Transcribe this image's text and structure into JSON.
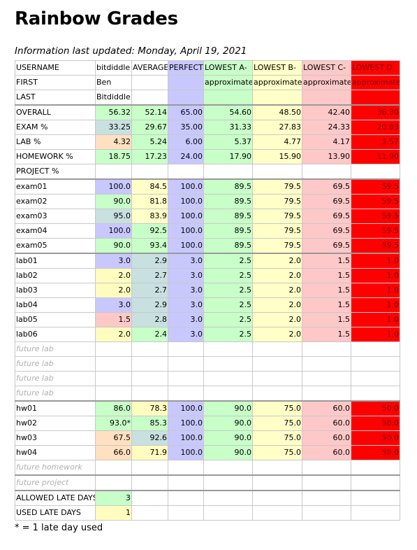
{
  "title": "Rainbow Grades",
  "updated": "Information last updated: Monday, April 19, 2021",
  "footnote": "* = 1 late day used",
  "colors": {
    "perfect": "#c8c8ff",
    "lowest_a": "#c8ffc8",
    "lowest_b": "#ffffc8",
    "lowest_c": "#ffc8c8",
    "lowest_d": "#ff0000"
  },
  "header": {
    "c0": "USERNAME",
    "c1": "bitdiddle",
    "c2": "AVERAGE",
    "c3": "PERFECT",
    "c4": "LOWEST A-",
    "c5": "LOWEST B-",
    "c6": "LOWEST C-",
    "c7": "LOWEST D"
  },
  "first": {
    "label": "FIRST",
    "value": "Ben",
    "approx": "approximate"
  },
  "last": {
    "label": "LAST",
    "value": "Bitdiddle"
  },
  "summary": {
    "overall": {
      "label": "OVERALL",
      "v": [
        "56.32",
        "52.14",
        "65.00",
        "54.60",
        "48.50",
        "42.40",
        "36.30"
      ]
    },
    "exam": {
      "label": "EXAM %",
      "v": [
        "33.25",
        "29.67",
        "35.00",
        "31.33",
        "27.83",
        "24.33",
        "20.83"
      ]
    },
    "lab": {
      "label": "LAB %",
      "v": [
        "4.32",
        "5.24",
        "6.00",
        "5.37",
        "4.77",
        "4.17",
        "3.57"
      ]
    },
    "homework": {
      "label": "HOMEWORK %",
      "v": [
        "18.75",
        "17.23",
        "24.00",
        "17.90",
        "15.90",
        "13.90",
        "11.90"
      ]
    },
    "project": {
      "label": "PROJECT %"
    }
  },
  "exams": [
    {
      "label": "exam01",
      "v": [
        "100.0",
        "84.5",
        "100.0",
        "89.5",
        "79.5",
        "69.5",
        "59.5"
      ]
    },
    {
      "label": "exam02",
      "v": [
        "90.0",
        "81.8",
        "100.0",
        "89.5",
        "79.5",
        "69.5",
        "59.5"
      ]
    },
    {
      "label": "exam03",
      "v": [
        "95.0",
        "83.9",
        "100.0",
        "89.5",
        "79.5",
        "69.5",
        "59.5"
      ]
    },
    {
      "label": "exam04",
      "v": [
        "100.0",
        "92.5",
        "100.0",
        "89.5",
        "79.5",
        "69.5",
        "59.5"
      ]
    },
    {
      "label": "exam05",
      "v": [
        "90.0",
        "93.4",
        "100.0",
        "89.5",
        "79.5",
        "69.5",
        "59.5"
      ]
    }
  ],
  "labs": [
    {
      "label": "lab01",
      "v": [
        "3.0",
        "2.9",
        "3.0",
        "2.5",
        "2.0",
        "1.5",
        "1.0"
      ]
    },
    {
      "label": "lab02",
      "v": [
        "2.0",
        "2.7",
        "3.0",
        "2.5",
        "2.0",
        "1.5",
        "1.0"
      ]
    },
    {
      "label": "lab03",
      "v": [
        "2.0",
        "2.7",
        "3.0",
        "2.5",
        "2.0",
        "1.5",
        "1.0"
      ]
    },
    {
      "label": "lab04",
      "v": [
        "3.0",
        "2.9",
        "3.0",
        "2.5",
        "2.0",
        "1.5",
        "1.0"
      ]
    },
    {
      "label": "lab05",
      "v": [
        "1.5",
        "2.8",
        "3.0",
        "2.5",
        "2.0",
        "1.5",
        "1.0"
      ]
    },
    {
      "label": "lab06",
      "v": [
        "2.0",
        "2.4",
        "3.0",
        "2.5",
        "2.0",
        "1.5",
        "1.0"
      ]
    }
  ],
  "future_lab": [
    "future lab",
    "future lab",
    "future lab",
    "future lab"
  ],
  "homeworks": [
    {
      "label": "hw01",
      "v": [
        "86.0",
        "78.3",
        "100.0",
        "90.0",
        "75.0",
        "60.0",
        "50.0"
      ]
    },
    {
      "label": "hw02",
      "v": [
        "93.0*",
        "85.3",
        "100.0",
        "90.0",
        "75.0",
        "60.0",
        "50.0"
      ]
    },
    {
      "label": "hw03",
      "v": [
        "67.5",
        "92.6",
        "100.0",
        "90.0",
        "75.0",
        "60.0",
        "50.0"
      ]
    },
    {
      "label": "hw04",
      "v": [
        "66.0",
        "71.9",
        "100.0",
        "90.0",
        "75.0",
        "60.0",
        "50.0"
      ]
    }
  ],
  "future_homework": "future homework",
  "future_project": "future project",
  "late_days": {
    "allowed_label": "ALLOWED LATE DAYS",
    "allowed": "3",
    "used_label": "USED LATE DAYS",
    "used": "1"
  }
}
